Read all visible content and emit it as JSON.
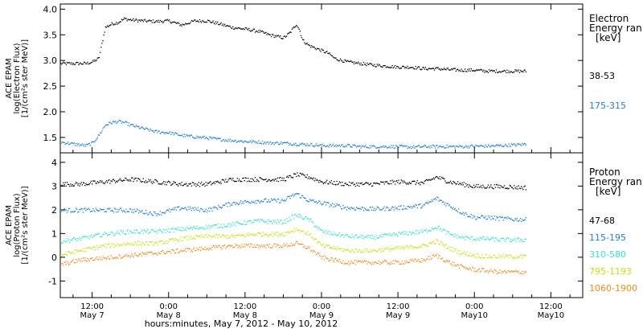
{
  "figure": {
    "xaxis_title": "hours:minutes, May  7, 2012 - May 10, 2012",
    "x_ticks": [
      {
        "t": 12,
        "time": "12:00",
        "date": "May 7"
      },
      {
        "t": 24,
        "time": "0:00",
        "date": "May 8"
      },
      {
        "t": 36,
        "time": "12:00",
        "date": "May 8"
      },
      {
        "t": 48,
        "time": "0:00",
        "date": "May 9"
      },
      {
        "t": 60,
        "time": "12:00",
        "date": "May 9"
      },
      {
        "t": 72,
        "time": "0:00",
        "date": "May10"
      },
      {
        "t": 84,
        "time": "12:00",
        "date": "May10"
      }
    ],
    "x_range_hours": [
      7,
      89
    ]
  },
  "chart_data": [
    {
      "type": "scatter",
      "panel": "electron",
      "ylabel_lines": [
        "ACE EPAM",
        "log(Electron Flux)",
        "[1/(cm²s ster MeV)]"
      ],
      "ylim": [
        1.2,
        4.1
      ],
      "yticks": [
        1.5,
        2.0,
        2.5,
        3.0,
        3.5,
        4.0
      ],
      "ytick_labels": [
        "1.5",
        "2.0",
        "2.5",
        "3.0",
        "3.5",
        "4.0"
      ],
      "legend_title_lines": [
        "Electron",
        "Energy ran",
        "[keV]"
      ],
      "series": [
        {
          "name": "38-53",
          "color": "#000000",
          "x": [
            7,
            9,
            11,
            12,
            13,
            14,
            15,
            16,
            17,
            18,
            20,
            22,
            24,
            26,
            28,
            30,
            32,
            34,
            36,
            38,
            40,
            42,
            43,
            44,
            44.5,
            45,
            46,
            47,
            48,
            49,
            50,
            52,
            54,
            56,
            58,
            60,
            62,
            64,
            66,
            68,
            70,
            72,
            74,
            76,
            78,
            80
          ],
          "y": [
            2.95,
            2.95,
            2.95,
            2.98,
            3.05,
            3.65,
            3.72,
            3.75,
            3.82,
            3.8,
            3.78,
            3.77,
            3.78,
            3.7,
            3.78,
            3.78,
            3.72,
            3.65,
            3.62,
            3.58,
            3.5,
            3.45,
            3.55,
            3.72,
            3.6,
            3.4,
            3.3,
            3.25,
            3.2,
            3.15,
            3.05,
            2.98,
            2.95,
            2.92,
            2.9,
            2.88,
            2.88,
            2.85,
            2.85,
            2.83,
            2.82,
            2.82,
            2.8,
            2.8,
            2.8,
            2.8
          ]
        },
        {
          "name": "175-315",
          "color": "#1f7fd0",
          "x": [
            7,
            9,
            11,
            12,
            13,
            14,
            15,
            16,
            17,
            18,
            20,
            22,
            24,
            26,
            28,
            30,
            32,
            34,
            36,
            38,
            40,
            42,
            44,
            46,
            48,
            50,
            52,
            54,
            56,
            58,
            60,
            62,
            64,
            66,
            68,
            70,
            72,
            74,
            76,
            78,
            80
          ],
          "y": [
            1.42,
            1.38,
            1.35,
            1.4,
            1.55,
            1.75,
            1.8,
            1.82,
            1.8,
            1.75,
            1.68,
            1.62,
            1.6,
            1.55,
            1.52,
            1.5,
            1.47,
            1.45,
            1.43,
            1.42,
            1.4,
            1.4,
            1.38,
            1.37,
            1.35,
            1.35,
            1.35,
            1.33,
            1.33,
            1.33,
            1.33,
            1.32,
            1.33,
            1.33,
            1.33,
            1.33,
            1.34,
            1.34,
            1.35,
            1.36,
            1.38
          ]
        }
      ]
    },
    {
      "type": "scatter",
      "panel": "proton",
      "ylabel_lines": [
        "ACE EPAM",
        "log(Proton Flux)",
        "[1/(cm²s ster MeV)]"
      ],
      "ylim": [
        -1.7,
        4.4
      ],
      "yticks": [
        -1,
        0,
        1,
        2,
        3,
        4
      ],
      "ytick_labels": [
        "-1",
        "0",
        "1",
        "2",
        "3",
        "4"
      ],
      "legend_title_lines": [
        "Proton",
        "Energy ran",
        "[keV]"
      ],
      "series": [
        {
          "name": "47-68",
          "color": "#000000",
          "x": [
            7,
            10,
            14,
            18,
            22,
            26,
            30,
            34,
            38,
            42,
            44,
            46,
            48,
            52,
            56,
            60,
            64,
            66,
            68,
            70,
            72,
            74,
            76,
            80
          ],
          "y": [
            3.1,
            3.1,
            3.2,
            3.3,
            3.2,
            3.1,
            3.1,
            3.3,
            3.3,
            3.3,
            3.5,
            3.4,
            3.2,
            3.1,
            3.1,
            3.2,
            3.15,
            3.4,
            3.2,
            3.1,
            3.0,
            3.0,
            3.0,
            2.95
          ]
        },
        {
          "name": "115-195",
          "color": "#1f7fd0",
          "x": [
            7,
            10,
            14,
            18,
            22,
            26,
            30,
            34,
            38,
            42,
            44,
            46,
            48,
            52,
            56,
            60,
            64,
            66,
            68,
            70,
            72,
            74,
            76,
            80
          ],
          "y": [
            2.0,
            2.0,
            2.0,
            2.0,
            1.85,
            2.1,
            2.0,
            2.3,
            2.4,
            2.4,
            2.7,
            2.4,
            2.3,
            2.1,
            2.05,
            2.1,
            2.2,
            2.5,
            2.2,
            1.9,
            1.7,
            1.7,
            1.65,
            1.6
          ]
        },
        {
          "name": "310-580",
          "color": "#35e0d0",
          "x": [
            7,
            10,
            14,
            18,
            22,
            26,
            30,
            34,
            38,
            42,
            44,
            46,
            48,
            52,
            56,
            60,
            64,
            66,
            68,
            70,
            72,
            74,
            76,
            80
          ],
          "y": [
            0.7,
            0.8,
            1.0,
            1.1,
            1.1,
            1.2,
            1.3,
            1.4,
            1.55,
            1.5,
            1.8,
            1.6,
            1.1,
            0.9,
            0.85,
            1.0,
            1.1,
            1.3,
            1.0,
            0.85,
            0.8,
            0.8,
            0.75,
            0.75
          ]
        },
        {
          "name": "795-1193",
          "color": "#c8e010",
          "x": [
            7,
            10,
            14,
            18,
            22,
            26,
            30,
            34,
            38,
            42,
            44,
            46,
            48,
            52,
            56,
            60,
            64,
            66,
            68,
            70,
            72,
            74,
            76,
            80
          ],
          "y": [
            0.1,
            0.3,
            0.5,
            0.6,
            0.6,
            0.8,
            0.9,
            0.9,
            1.0,
            1.0,
            1.2,
            1.0,
            0.5,
            0.3,
            0.3,
            0.4,
            0.5,
            0.7,
            0.4,
            0.2,
            0.1,
            0.05,
            0.05,
            0.05
          ]
        },
        {
          "name": "1060-1900",
          "color": "#f08a20",
          "x": [
            7,
            10,
            14,
            18,
            22,
            26,
            30,
            34,
            38,
            42,
            44,
            46,
            48,
            52,
            56,
            60,
            64,
            66,
            68,
            70,
            72,
            74,
            76,
            80
          ],
          "y": [
            -0.3,
            -0.1,
            0.0,
            0.1,
            0.2,
            0.3,
            0.4,
            0.5,
            0.5,
            0.5,
            0.6,
            0.4,
            0.0,
            -0.2,
            -0.2,
            -0.2,
            -0.1,
            0.1,
            -0.2,
            -0.4,
            -0.5,
            -0.55,
            -0.6,
            -0.6
          ]
        }
      ]
    }
  ]
}
